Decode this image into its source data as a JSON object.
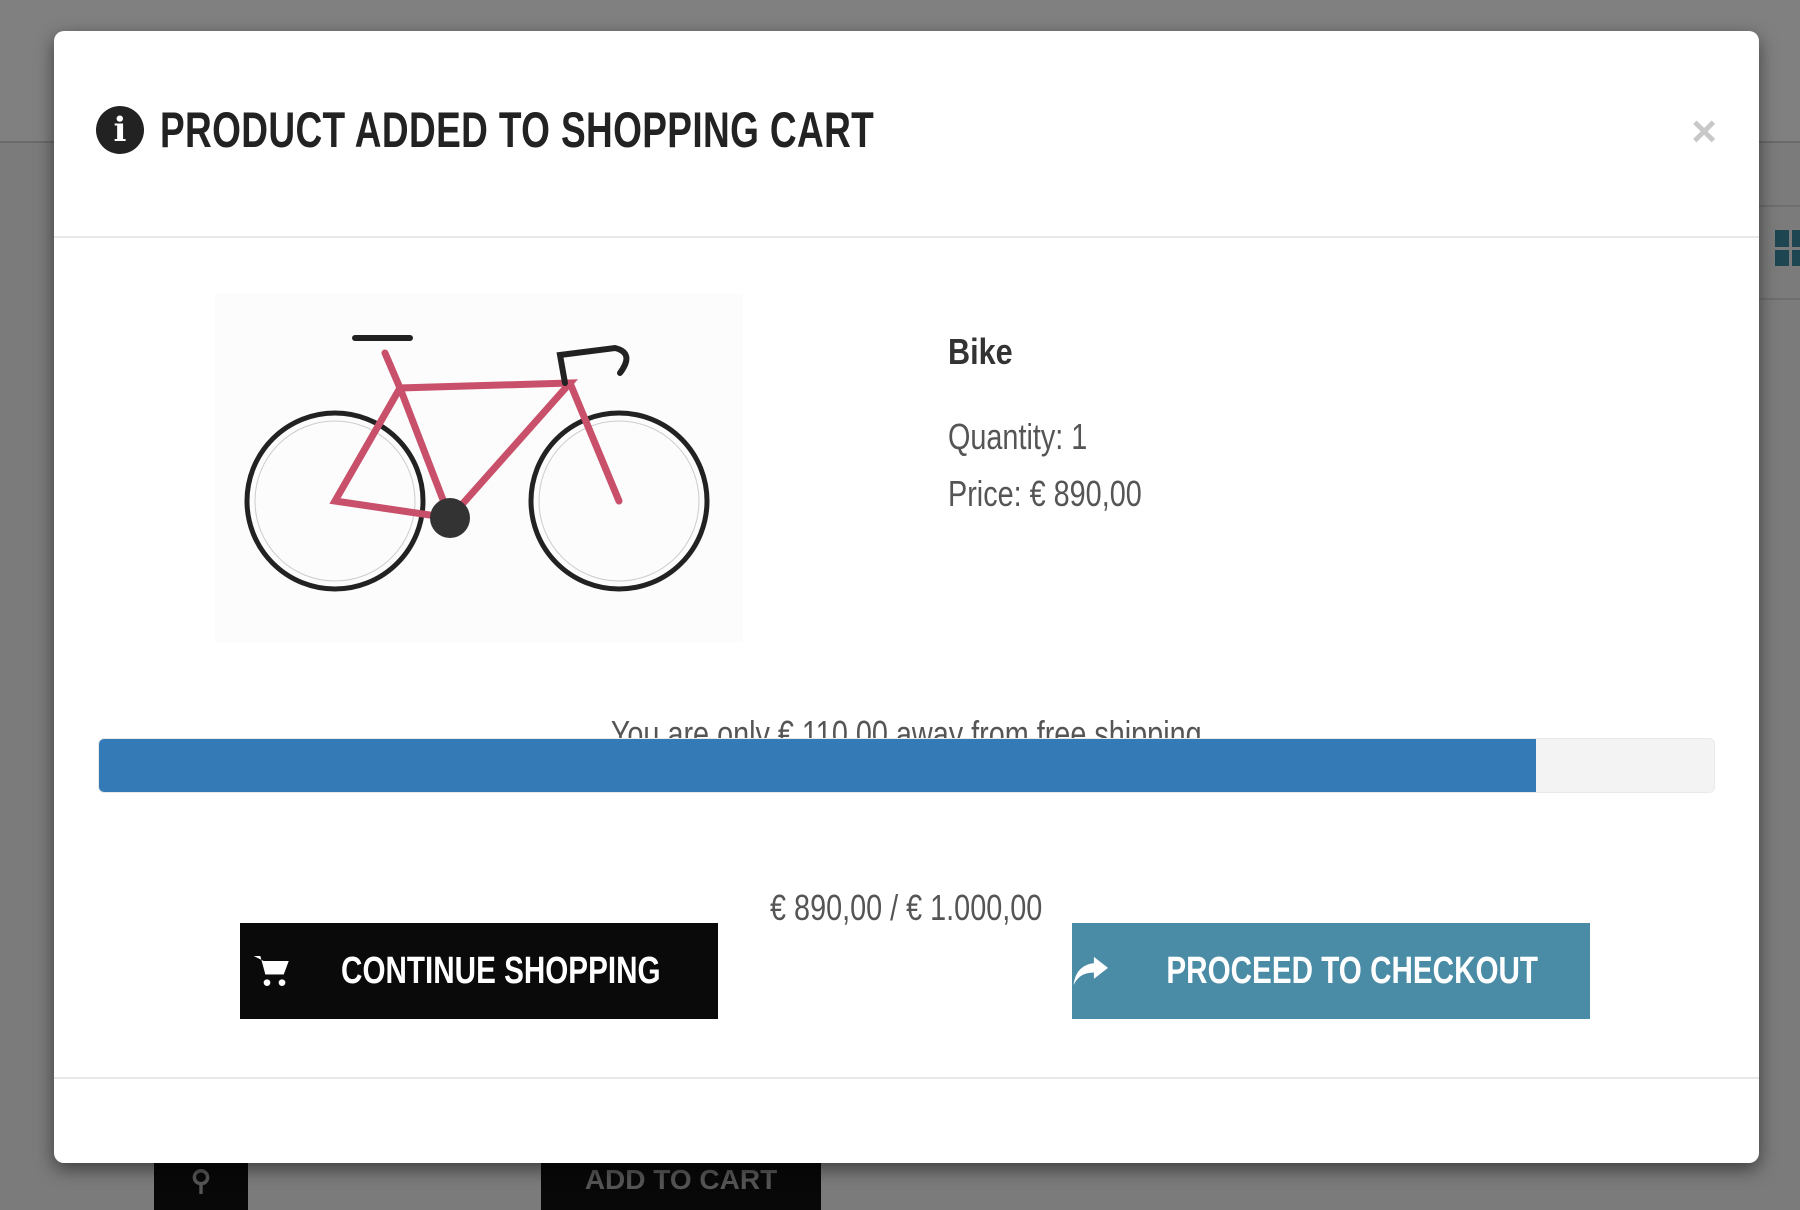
{
  "background": {
    "add_to_cart_label": "ADD TO CART",
    "search_icon": "search-icon",
    "grid_icon": "grid-view-icon"
  },
  "modal": {
    "title": "PRODUCT ADDED TO SHOPPING CART",
    "title_icon": "info-circle-icon",
    "close_label": "×",
    "product": {
      "name": "Bike",
      "quantity": "Quantity: 1",
      "price": "Price: € 890,00",
      "image": "pink road bike"
    },
    "shipping_message": "You are only € 110,00 away from free shipping",
    "progress_percent": 89,
    "progress_totals": "€ 890,00 / € 1.000,00",
    "continue_label": "CONTINUE SHOPPING",
    "checkout_label": "PROCEED TO CHECKOUT",
    "colors": {
      "progress": "#337ab7",
      "checkout": "#4a8ba6",
      "continue": "#0a0a0a"
    }
  }
}
